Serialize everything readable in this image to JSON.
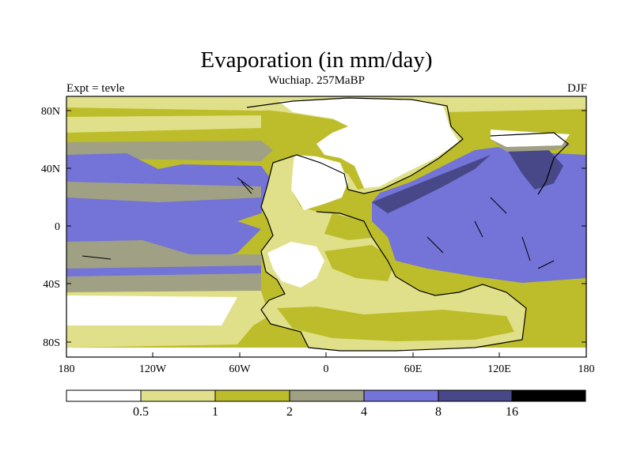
{
  "title": "Evaporation (in mm/day)",
  "subtitle": "Wuchiap. 257MaBP",
  "left_label": "Expt = tevle",
  "right_label": "DJF",
  "y_ticks": [
    "80N",
    "40N",
    "0",
    "40S",
    "80S"
  ],
  "x_ticks": [
    "180",
    "120W",
    "60W",
    "0",
    "60E",
    "120E",
    "180"
  ],
  "colorbar": {
    "labels": [
      "0.5",
      "1",
      "2",
      "4",
      "8",
      "16"
    ],
    "colors": [
      "#ffffff",
      "#e1e08a",
      "#bdbd2b",
      "#a0a084",
      "#7373d8",
      "#484888",
      "#000000"
    ]
  },
  "palette": {
    "white": "#ffffff",
    "pale": "#e1e08a",
    "olive": "#bdbd2b",
    "gray": "#a0a084",
    "blue": "#7373d8",
    "navy": "#484888"
  }
}
